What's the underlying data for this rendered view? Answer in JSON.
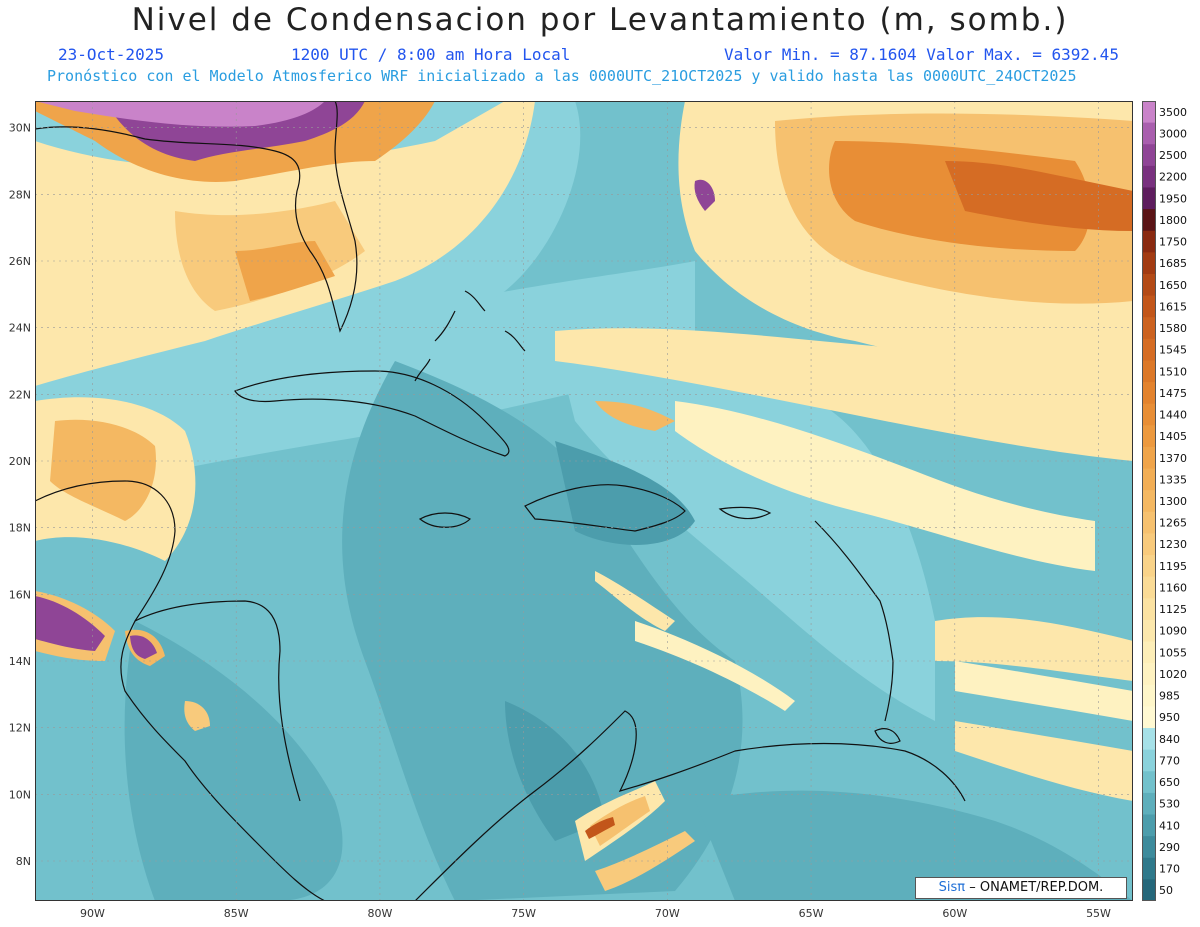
{
  "header": {
    "title": "Nivel de Condensacion por Levantamiento (m, somb.)",
    "date": "23-Oct-2025",
    "time": "1200 UTC / 8:00 am Hora Local",
    "minmax": "Valor Min. = 87.1604  Valor Max. = 6392.45",
    "subtitle": "Pronóstico con el Modelo Atmosferico WRF inicializado a las 0000UTC_21OCT2025 y valido hasta las  0000UTC_24OCT2025"
  },
  "map": {
    "lat_labels": [
      "30N",
      "28N",
      "26N",
      "24N",
      "22N",
      "20N",
      "18N",
      "16N",
      "14N",
      "12N",
      "10N",
      "8N"
    ],
    "lon_labels": [
      "90W",
      "85W",
      "80W",
      "75W",
      "70W",
      "65W",
      "60W",
      "55W"
    ],
    "lat_range": [
      6.8,
      30.8
    ],
    "lon_range": [
      -92,
      -53.8
    ],
    "grid": true
  },
  "colorbar": {
    "levels": [
      "3500",
      "3000",
      "2500",
      "2200",
      "1950",
      "1800",
      "1750",
      "1685",
      "1650",
      "1615",
      "1580",
      "1545",
      "1510",
      "1475",
      "1440",
      "1405",
      "1370",
      "1335",
      "1300",
      "1265",
      "1230",
      "1195",
      "1160",
      "1125",
      "1090",
      "1055",
      "1020",
      "985",
      "950",
      "840",
      "770",
      "650",
      "530",
      "410",
      "290",
      "170",
      "50"
    ],
    "colors": [
      "#c983c9",
      "#a95fae",
      "#8f4596",
      "#79317f",
      "#5e1d5e",
      "#5a1416",
      "#8a2a10",
      "#a23b12",
      "#b34a16",
      "#c2561a",
      "#cc6220",
      "#d56c24",
      "#dc7828",
      "#e3832e",
      "#e88e36",
      "#ec993f",
      "#efa44a",
      "#f2ae55",
      "#f4b862",
      "#f6c16f",
      "#f8ca7c",
      "#f9d389",
      "#fadb96",
      "#fbe2a2",
      "#fce8ad",
      "#fdeeb8",
      "#fef2c1",
      "#fef6c9",
      "#fff9d2",
      "#a6e1e8",
      "#8ad2dc",
      "#72c1cc",
      "#5eafbc",
      "#4c9dac",
      "#3d8b9c",
      "#2f798b",
      "#25677a"
    ]
  },
  "credit": {
    "sis": "Sisπ",
    "org": "– ONAMET/REP.DOM."
  }
}
